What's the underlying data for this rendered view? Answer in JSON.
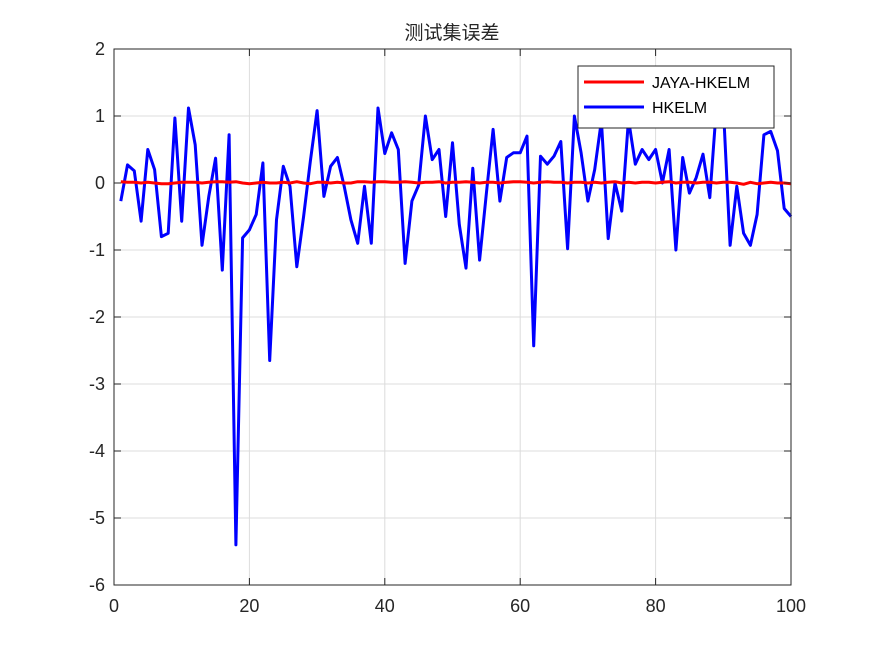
{
  "chart_data": {
    "type": "line",
    "title": "测试集误差",
    "xlabel": "",
    "ylabel": "",
    "xlim": [
      0,
      100
    ],
    "ylim": [
      -6,
      2
    ],
    "xticks": [
      0,
      20,
      40,
      60,
      80,
      100
    ],
    "yticks": [
      -6,
      -5,
      -4,
      -3,
      -2,
      -1,
      0,
      1,
      2
    ],
    "grid": true,
    "legend_position": "top-right",
    "series": [
      {
        "name": "JAYA-HKELM",
        "color": "#ff0000",
        "x": [
          1,
          2,
          3,
          4,
          5,
          6,
          7,
          8,
          9,
          10,
          11,
          12,
          13,
          14,
          15,
          16,
          17,
          18,
          19,
          20,
          21,
          22,
          23,
          24,
          25,
          26,
          27,
          28,
          29,
          30,
          31,
          32,
          33,
          34,
          35,
          36,
          37,
          38,
          39,
          40,
          41,
          42,
          43,
          44,
          45,
          46,
          47,
          48,
          49,
          50,
          51,
          52,
          53,
          54,
          55,
          56,
          57,
          58,
          59,
          60,
          61,
          62,
          63,
          64,
          65,
          66,
          67,
          68,
          69,
          70,
          71,
          72,
          73,
          74,
          75,
          76,
          77,
          78,
          79,
          80,
          81,
          82,
          83,
          84,
          85,
          86,
          87,
          88,
          89,
          90,
          91,
          92,
          93,
          94,
          95,
          96,
          97,
          98,
          99,
          100
        ],
        "values": [
          0.02,
          0.01,
          0.01,
          0.0,
          0.01,
          0.0,
          -0.01,
          -0.01,
          0.0,
          0.01,
          0.01,
          0.01,
          0.0,
          0.01,
          0.02,
          0.02,
          0.01,
          0.02,
          0.0,
          -0.01,
          0.0,
          0.01,
          0.0,
          0.0,
          0.01,
          0.0,
          0.02,
          0.0,
          -0.01,
          0.01,
          0.01,
          0.0,
          0.01,
          0.0,
          0.0,
          0.02,
          0.02,
          0.01,
          0.02,
          0.02,
          0.01,
          0.01,
          0.02,
          0.01,
          0.0,
          0.01,
          0.01,
          0.02,
          0.0,
          0.01,
          0.01,
          0.02,
          0.01,
          0.0,
          0.01,
          0.01,
          0.0,
          0.01,
          0.02,
          0.02,
          0.01,
          0.0,
          0.01,
          0.02,
          0.01,
          0.01,
          0.0,
          0.01,
          0.01,
          0.0,
          0.01,
          0.0,
          0.01,
          0.02,
          0.0,
          0.01,
          0.0,
          0.01,
          0.01,
          0.0,
          0.01,
          0.02,
          0.0,
          0.01,
          0.01,
          0.0,
          0.01,
          0.01,
          0.0,
          0.01,
          0.01,
          0.0,
          -0.02,
          0.01,
          -0.01,
          0.0,
          0.01,
          0.0,
          0.0,
          -0.01
        ]
      },
      {
        "name": "HKELM",
        "color": "#0000ff",
        "x": [
          1,
          2,
          3,
          4,
          5,
          6,
          7,
          8,
          9,
          10,
          11,
          12,
          13,
          14,
          15,
          16,
          17,
          18,
          19,
          20,
          21,
          22,
          23,
          24,
          25,
          26,
          27,
          28,
          29,
          30,
          31,
          32,
          33,
          34,
          35,
          36,
          37,
          38,
          39,
          40,
          41,
          42,
          43,
          44,
          45,
          46,
          47,
          48,
          49,
          50,
          51,
          52,
          53,
          54,
          55,
          56,
          57,
          58,
          59,
          60,
          61,
          62,
          63,
          64,
          65,
          66,
          67,
          68,
          69,
          70,
          71,
          72,
          73,
          74,
          75,
          76,
          77,
          78,
          79,
          80,
          81,
          82,
          83,
          84,
          85,
          86,
          87,
          88,
          89,
          90,
          91,
          92,
          93,
          94,
          95,
          96,
          97,
          98,
          99,
          100
        ],
        "values": [
          -0.27,
          0.27,
          0.18,
          -0.57,
          0.5,
          0.2,
          -0.8,
          -0.75,
          0.97,
          -0.57,
          1.12,
          0.57,
          -0.93,
          -0.2,
          0.37,
          -1.3,
          0.72,
          -5.4,
          -0.82,
          -0.7,
          -0.47,
          0.3,
          -2.65,
          -0.55,
          0.25,
          -0.05,
          -1.25,
          -0.5,
          0.32,
          1.08,
          -0.2,
          0.25,
          0.38,
          -0.05,
          -0.55,
          -0.9,
          -0.05,
          -0.9,
          1.12,
          0.44,
          0.75,
          0.5,
          -1.2,
          -0.27,
          -0.03,
          1.0,
          0.35,
          0.5,
          -0.5,
          0.6,
          -0.62,
          -1.27,
          0.22,
          -1.15,
          -0.15,
          0.8,
          -0.27,
          0.38,
          0.45,
          0.45,
          0.7,
          -2.43,
          0.4,
          0.28,
          0.4,
          0.62,
          -0.98,
          1.0,
          0.45,
          -0.27,
          0.2,
          0.93,
          -0.83,
          0.0,
          -0.42,
          0.95,
          0.28,
          0.5,
          0.35,
          0.5,
          0.0,
          0.5,
          -1.0,
          0.38,
          -0.15,
          0.08,
          0.43,
          -0.22,
          1.15,
          1.15,
          -0.93,
          -0.05,
          -0.75,
          -0.93,
          -0.47,
          0.72,
          0.77,
          0.48,
          -0.38,
          -0.5
        ]
      }
    ]
  }
}
